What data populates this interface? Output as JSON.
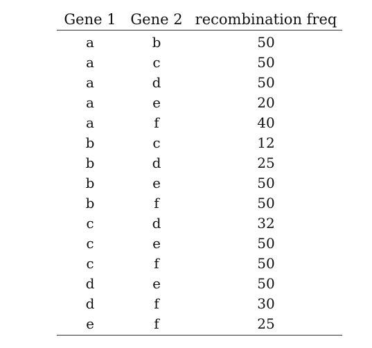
{
  "table": {
    "headers": [
      "Gene 1",
      "Gene 2",
      "recombination freq"
    ],
    "rows": [
      [
        "a",
        "b",
        "50"
      ],
      [
        "a",
        "c",
        "50"
      ],
      [
        "a",
        "d",
        "50"
      ],
      [
        "a",
        "e",
        "20"
      ],
      [
        "a",
        "f",
        "40"
      ],
      [
        "b",
        "c",
        "12"
      ],
      [
        "b",
        "d",
        "25"
      ],
      [
        "b",
        "e",
        "50"
      ],
      [
        "b",
        "f",
        "50"
      ],
      [
        "c",
        "d",
        "32"
      ],
      [
        "c",
        "e",
        "50"
      ],
      [
        "c",
        "f",
        "50"
      ],
      [
        "d",
        "e",
        "50"
      ],
      [
        "d",
        "f",
        "30"
      ],
      [
        "e",
        "f",
        "25"
      ]
    ]
  }
}
